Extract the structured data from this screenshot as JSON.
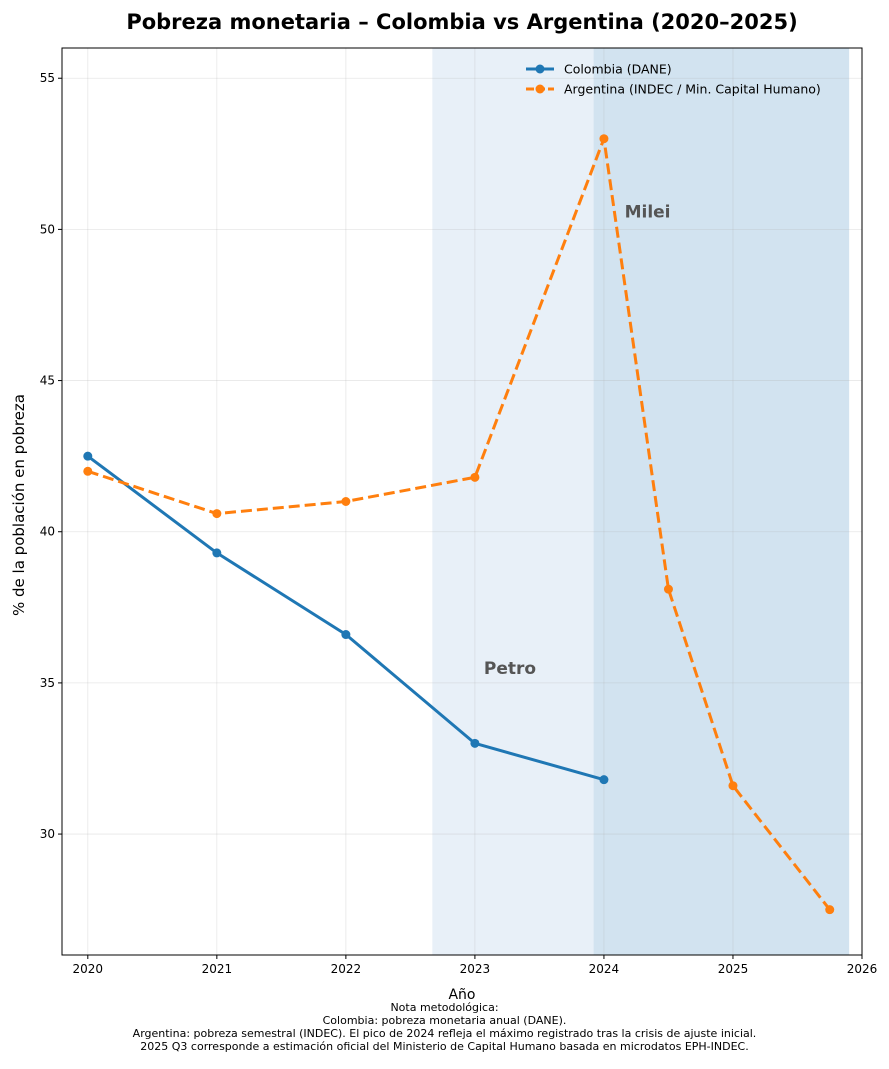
{
  "chart_data": {
    "type": "line",
    "title": "Pobreza monetaria – Colombia vs Argentina (2020–2025)",
    "xlabel": "Año",
    "ylabel": "% de la población en pobreza",
    "xlim": [
      2019.8,
      2026
    ],
    "ylim": [
      26.0,
      56.0
    ],
    "xticks": [
      2020,
      2021,
      2022,
      2023,
      2024,
      2025,
      2026
    ],
    "yticks": [
      30,
      35,
      40,
      45,
      50,
      55
    ],
    "grid": true,
    "legend_position": "top-right",
    "shaded_periods": [
      {
        "label": "Petro",
        "start": 2022.67,
        "end": 2025.9,
        "color": "#e8f0f8"
      },
      {
        "label": "Milei",
        "start": 2023.92,
        "end": 2025.9,
        "color": "#d2e3f0"
      }
    ],
    "series": [
      {
        "name": "Colombia (DANE)",
        "color": "#1f77b4",
        "style": "solid",
        "x": [
          2020,
          2021,
          2022,
          2023,
          2024
        ],
        "y": [
          42.5,
          39.3,
          36.6,
          33.0,
          31.8
        ]
      },
      {
        "name": "Argentina (INDEC / Min. Capital Humano)",
        "color": "#ff7f0e",
        "style": "dashed",
        "x": [
          2020,
          2021,
          2022,
          2023,
          2024,
          2024.5,
          2025,
          2025.75
        ],
        "y": [
          42.0,
          40.6,
          41.0,
          41.8,
          53.0,
          38.1,
          31.6,
          27.5
        ]
      }
    ]
  },
  "footnote": {
    "line1": "Nota metodológica:",
    "line2": "Colombia: pobreza monetaria anual (DANE).",
    "line3": "Argentina: pobreza semestral (INDEC). El pico de 2024 refleja el máximo registrado tras la crisis de ajuste inicial.",
    "line4": "2025 Q3 corresponde a estimación oficial del Ministerio de Capital Humano basada en microdatos EPH-INDEC."
  }
}
